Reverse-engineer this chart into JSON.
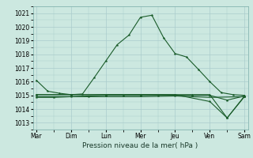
{
  "background_color": "#cce8e0",
  "grid_color": "#aacccc",
  "line_color": "#1a5c2a",
  "xlabel": "Pression niveau de la mer( hPa )",
  "ylim": [
    1012.5,
    1021.5
  ],
  "yticks": [
    1013,
    1014,
    1015,
    1016,
    1017,
    1018,
    1019,
    1020,
    1021
  ],
  "day_labels": [
    "Mar",
    "Dim",
    "Lun",
    "Mer",
    "Jeu",
    "Ven",
    "Sam"
  ],
  "line1_x": [
    0,
    0.33,
    0.67,
    1.0,
    1.33,
    1.67,
    2.0,
    2.33,
    2.67,
    3.0,
    3.33,
    3.67,
    4.0,
    4.33,
    4.67,
    5.0,
    5.33,
    5.67,
    6.0
  ],
  "line1_y": [
    1016.1,
    1015.3,
    1015.15,
    1015.05,
    1015.1,
    1016.3,
    1017.5,
    1018.7,
    1019.4,
    1020.7,
    1020.85,
    1019.2,
    1018.05,
    1017.8,
    1016.9,
    1016.0,
    1015.2,
    1015.05,
    1015.0
  ],
  "line2_x": [
    0,
    0.5,
    1.0,
    1.5,
    2.0,
    2.5,
    3.0,
    3.5,
    4.0,
    4.5,
    5.0,
    5.5,
    6.0
  ],
  "line2_y": [
    1014.85,
    1014.85,
    1014.9,
    1014.95,
    1015.0,
    1015.0,
    1015.0,
    1015.0,
    1015.0,
    1015.0,
    1015.0,
    1014.65,
    1014.95
  ],
  "line3_x": [
    0,
    1,
    2,
    3,
    4,
    5,
    6
  ],
  "line3_y": [
    1014.9,
    1014.9,
    1014.9,
    1014.9,
    1014.95,
    1014.85,
    1014.9
  ],
  "line4_x": [
    0,
    1,
    2,
    3,
    4,
    4.5,
    5.0,
    5.5,
    6.0
  ],
  "line4_y": [
    1015.05,
    1015.05,
    1015.05,
    1015.05,
    1015.05,
    1015.05,
    1015.05,
    1013.35,
    1014.95
  ],
  "line5_x": [
    0,
    1,
    2,
    3,
    4,
    5.0,
    5.5,
    6.0
  ],
  "line5_y": [
    1015.05,
    1015.05,
    1015.05,
    1015.05,
    1015.05,
    1014.55,
    1013.35,
    1014.9
  ],
  "xlim": [
    -0.1,
    6.1
  ]
}
